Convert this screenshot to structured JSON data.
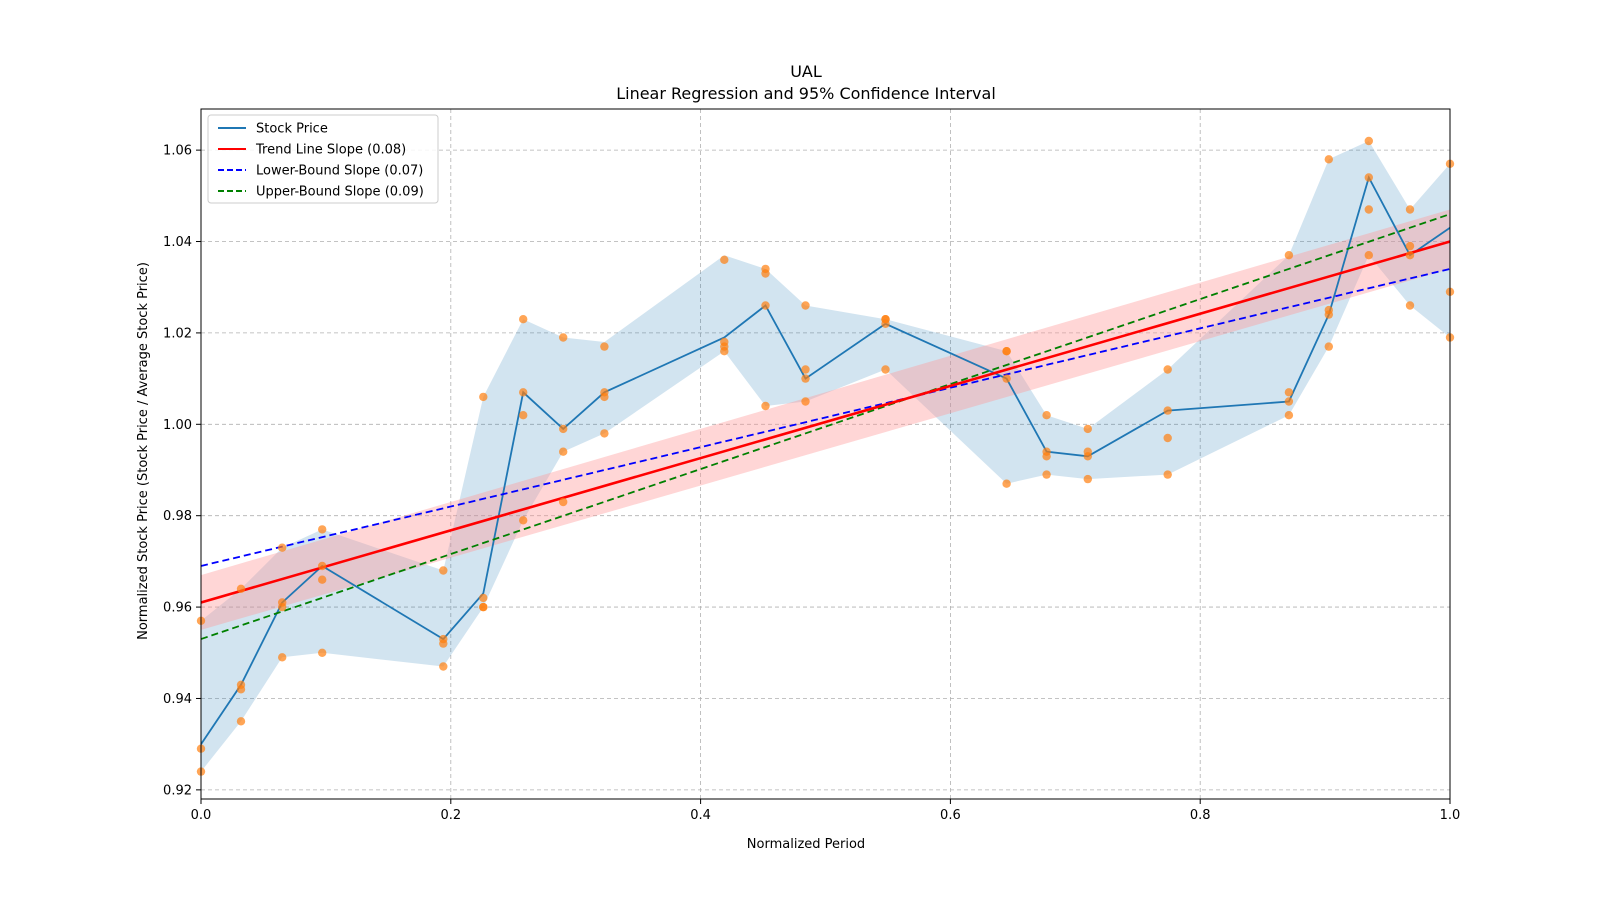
{
  "chart_data": {
    "type": "line",
    "title": "UAL",
    "subtitle": "Linear Regression and 95% Confidence Interval",
    "xlabel": "Normalized Period",
    "ylabel": "Normalized Stock Price (Stock Price / Average Stock Price)",
    "xlim": [
      0,
      1
    ],
    "ylim": [
      0.918,
      1.069
    ],
    "xticks": [
      0.0,
      0.2,
      0.4,
      0.6,
      0.8,
      1.0
    ],
    "xtick_labels": [
      "0.0",
      "0.2",
      "0.4",
      "0.6",
      "0.8",
      "1.0"
    ],
    "yticks": [
      0.92,
      0.94,
      0.96,
      0.98,
      1.0,
      1.02,
      1.04,
      1.06
    ],
    "ytick_labels": [
      "0.92",
      "0.94",
      "0.96",
      "0.98",
      "1.00",
      "1.02",
      "1.04",
      "1.06"
    ],
    "grid": true,
    "legend_position": "top-left",
    "legend": [
      {
        "label": "Stock Price",
        "color": "#1f77b4",
        "dash": "solid"
      },
      {
        "label": "Trend Line Slope (0.08)",
        "color": "#ff0000",
        "dash": "solid"
      },
      {
        "label": "Lower-Bound Slope (0.07)",
        "color": "#0000ff",
        "dash": "dashed"
      },
      {
        "label": "Upper-Bound Slope (0.09)",
        "color": "#008000",
        "dash": "dashed"
      }
    ],
    "colors": {
      "stock": "#1f77b4",
      "stock_band": "#1f77b4",
      "points": "#ff7f0e",
      "trend": "#ff0000",
      "trend_band": "#ff9999",
      "lower": "#0000ff",
      "upper": "#008000"
    },
    "stock_price": {
      "x": [
        0.0,
        0.032,
        0.065,
        0.097,
        0.194,
        0.226,
        0.258,
        0.29,
        0.323,
        0.419,
        0.452,
        0.484,
        0.548,
        0.645,
        0.677,
        0.71,
        0.774,
        0.871,
        0.903,
        0.935,
        0.968,
        1.0
      ],
      "y": [
        0.93,
        0.943,
        0.961,
        0.969,
        0.953,
        0.963,
        1.007,
        0.999,
        1.007,
        1.019,
        1.026,
        1.01,
        1.022,
        1.01,
        0.994,
        0.993,
        1.003,
        1.005,
        1.024,
        1.054,
        1.037,
        1.043
      ],
      "band_lower": [
        0.924,
        0.935,
        0.949,
        0.95,
        0.947,
        0.96,
        0.979,
        0.994,
        0.998,
        1.016,
        1.004,
        1.005,
        1.012,
        0.987,
        0.989,
        0.988,
        0.989,
        1.002,
        1.017,
        1.037,
        1.026,
        1.019
      ],
      "band_upper": [
        0.957,
        0.964,
        0.973,
        0.977,
        0.968,
        1.006,
        1.023,
        1.019,
        1.018,
        1.037,
        1.034,
        1.026,
        1.023,
        1.016,
        1.002,
        0.999,
        1.012,
        1.037,
        1.058,
        1.062,
        1.047,
        1.057
      ]
    },
    "scatter_points": {
      "x": [
        0.0,
        0.0,
        0.0,
        0.032,
        0.032,
        0.032,
        0.032,
        0.065,
        0.065,
        0.065,
        0.065,
        0.097,
        0.097,
        0.097,
        0.097,
        0.194,
        0.194,
        0.194,
        0.194,
        0.226,
        0.226,
        0.226,
        0.226,
        0.258,
        0.258,
        0.258,
        0.258,
        0.29,
        0.29,
        0.29,
        0.29,
        0.323,
        0.323,
        0.323,
        0.323,
        0.419,
        0.419,
        0.419,
        0.419,
        0.452,
        0.452,
        0.452,
        0.452,
        0.484,
        0.484,
        0.484,
        0.484,
        0.548,
        0.548,
        0.548,
        0.548,
        0.645,
        0.645,
        0.645,
        0.645,
        0.677,
        0.677,
        0.677,
        0.677,
        0.71,
        0.71,
        0.71,
        0.71,
        0.774,
        0.774,
        0.774,
        0.774,
        0.871,
        0.871,
        0.871,
        0.871,
        0.903,
        0.903,
        0.903,
        0.903,
        0.935,
        0.935,
        0.935,
        0.935,
        0.968,
        0.968,
        0.968,
        0.968,
        1.0,
        1.0,
        1.0
      ],
      "y": [
        0.957,
        0.929,
        0.924,
        0.964,
        0.943,
        0.942,
        0.935,
        0.973,
        0.961,
        0.96,
        0.949,
        0.977,
        0.969,
        0.966,
        0.95,
        0.968,
        0.953,
        0.952,
        0.947,
        1.006,
        0.962,
        0.96,
        0.96,
        1.023,
        1.007,
        1.002,
        0.979,
        1.019,
        0.999,
        0.994,
        0.983,
        1.017,
        1.007,
        1.006,
        0.998,
        1.036,
        1.018,
        1.017,
        1.016,
        1.034,
        1.033,
        1.026,
        1.004,
        1.026,
        1.012,
        1.01,
        1.005,
        1.023,
        1.023,
        1.022,
        1.012,
        1.016,
        1.016,
        1.01,
        0.987,
        1.002,
        0.994,
        0.993,
        0.989,
        0.999,
        0.994,
        0.993,
        0.988,
        1.012,
        1.003,
        0.997,
        0.989,
        1.037,
        1.007,
        1.005,
        1.002,
        1.058,
        1.025,
        1.024,
        1.017,
        1.062,
        1.054,
        1.047,
        1.037,
        1.047,
        1.039,
        1.037,
        1.026,
        1.057,
        1.029,
        1.019
      ]
    },
    "trend_line": {
      "x": [
        0,
        1
      ],
      "y": [
        0.961,
        1.04
      ],
      "band_lower": [
        0.955,
        1.034
      ],
      "band_upper": [
        0.967,
        1.047
      ]
    },
    "lower_bound_line": {
      "x": [
        0,
        1
      ],
      "y": [
        0.969,
        1.034
      ]
    },
    "upper_bound_line": {
      "x": [
        0,
        1
      ],
      "y": [
        0.953,
        1.046
      ]
    }
  }
}
